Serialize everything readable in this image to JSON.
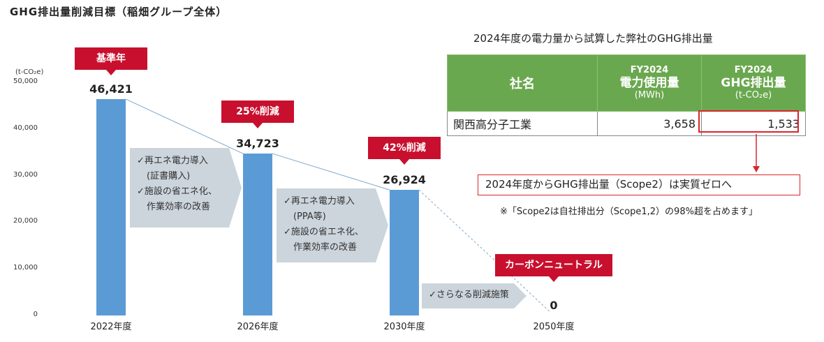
{
  "page_title": "GHG排出量削減目標（稲畑グループ全体）",
  "colors": {
    "bar": "#5b9bd5",
    "callout": "#c8102e",
    "arrow": "#ccd5dc",
    "table_header": "#6aa84f",
    "highlight": "#d9262b"
  },
  "chart_data": {
    "type": "bar",
    "title": "",
    "unit": "(t-CO₂e)",
    "categories": [
      "2022年度",
      "2026年度",
      "2030年度",
      "2050年度"
    ],
    "values": [
      46421,
      34723,
      26924,
      0
    ],
    "value_labels": [
      "46,421",
      "34,723",
      "26,924",
      "0"
    ],
    "ylim": [
      0,
      50000
    ],
    "yticks": [
      "50,000",
      "40,000",
      "30,000",
      "20,000",
      "10,000",
      "0"
    ],
    "callouts": [
      "基準年",
      "25%削減",
      "42%削減",
      "カーボンニュートラル"
    ],
    "measures": [
      [
        "✓再エネ電力導入",
        "(証書購入)",
        "✓施設の省エネ化、",
        "作業効率の改善"
      ],
      [
        "✓再エネ電力導入",
        "(PPA等)",
        "✓施設の省エネ化、",
        "作業効率の改善"
      ],
      [
        "✓さらなる削減施策"
      ]
    ]
  },
  "side_table": {
    "title": "2024年度の電力量から試算した弊社のGHG排出量",
    "header_name": "社名",
    "col1_fy": "FY2024",
    "col1_label": "電力使用量",
    "col1_unit": "(MWh)",
    "col2_fy": "FY2024",
    "col2_label": "GHG排出量",
    "col2_unit": "(t-CO₂e)",
    "row_name": "関西高分子工業",
    "row_power": "3,658",
    "row_ghg": "1,533"
  },
  "claim": "2024年度からGHG排出量（Scope2）は実質ゼロへ",
  "footnote": "※「Scope2は自社排出分（Scope1,2）の98%超を占めます」"
}
